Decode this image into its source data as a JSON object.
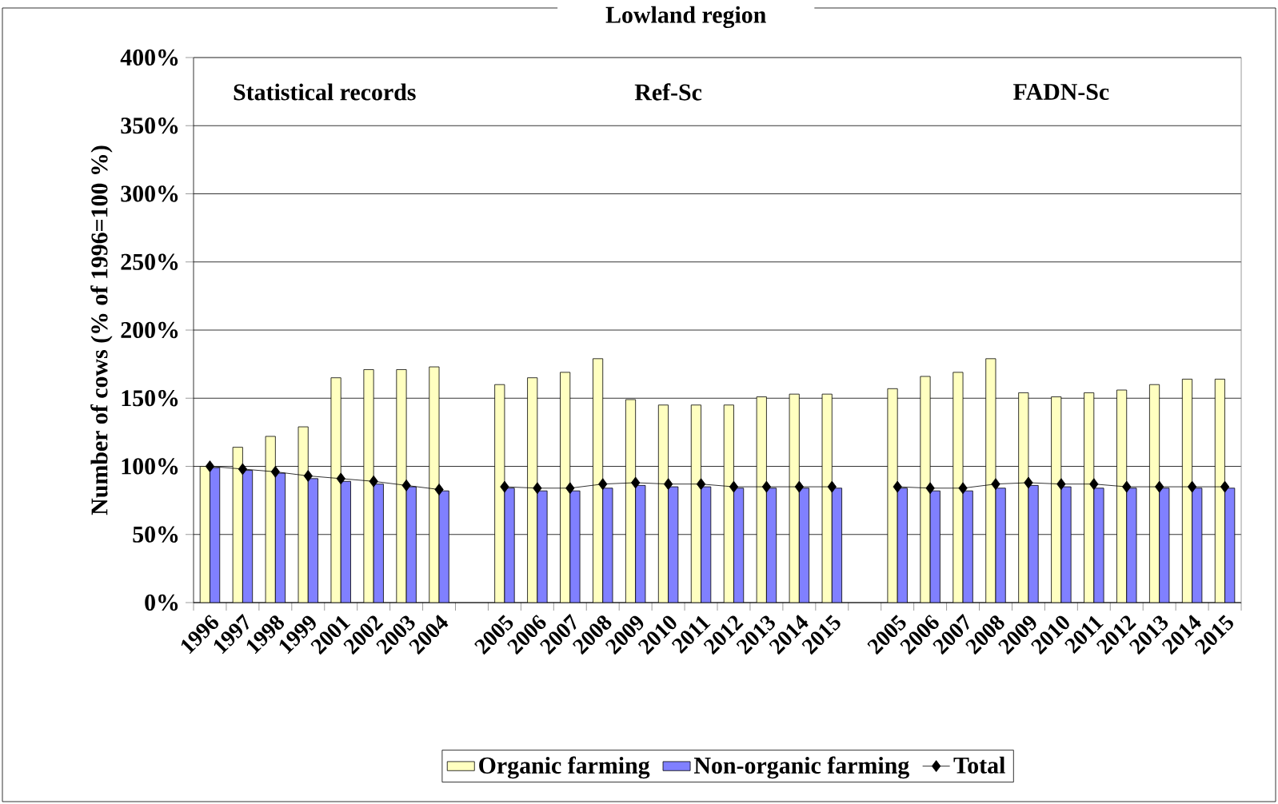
{
  "chart_data": {
    "type": "bar",
    "title": "Lowland region",
    "ylabel": "Number of cows (% of 1996=100 %)",
    "categories": [
      "1996",
      "1997",
      "1998",
      "1999",
      "2001",
      "2002",
      "2003",
      "2004",
      null,
      "2005",
      "2006",
      "2007",
      "2008",
      "2009",
      "2010",
      "2011",
      "2012",
      "2013",
      "2014",
      "2015",
      null,
      "2005",
      "2006",
      "2007",
      "2008",
      "2009",
      "2010",
      "2011",
      "2012",
      "2013",
      "2014",
      "2015"
    ],
    "series": [
      {
        "name": "Organic farming",
        "color": "#ffffc0",
        "values": [
          100,
          114,
          122,
          129,
          165,
          171,
          171,
          173,
          null,
          160,
          165,
          169,
          179,
          149,
          145,
          145,
          145,
          151,
          153,
          153,
          null,
          157,
          166,
          169,
          179,
          154,
          151,
          154,
          156,
          160,
          164,
          164
        ]
      },
      {
        "name": "Non-organic farming",
        "color": "#8080ff",
        "values": [
          99,
          97,
          95,
          91,
          89,
          87,
          85,
          82,
          null,
          84,
          82,
          82,
          84,
          86,
          85,
          85,
          84,
          84,
          84,
          84,
          null,
          84,
          82,
          82,
          84,
          86,
          85,
          84,
          84,
          84,
          84,
          84
        ]
      },
      {
        "name": "Total",
        "type": "line",
        "color": "#000000",
        "marker": "diamond",
        "values": [
          100,
          98,
          96,
          93,
          91,
          89,
          86,
          83,
          null,
          85,
          84,
          84,
          87,
          88,
          87,
          87,
          85,
          85,
          85,
          85,
          null,
          85,
          84,
          84,
          87,
          88,
          87,
          87,
          85,
          85,
          85,
          85
        ]
      }
    ],
    "ylim": [
      0,
      400
    ],
    "yticks": [
      {
        "value": 0,
        "label": "0%"
      },
      {
        "value": 50,
        "label": "50%"
      },
      {
        "value": 100,
        "label": "100%"
      },
      {
        "value": 150,
        "label": "150%"
      },
      {
        "value": 200,
        "label": "200%"
      },
      {
        "value": 250,
        "label": "250%"
      },
      {
        "value": 300,
        "label": "300%"
      },
      {
        "value": 350,
        "label": "350%"
      },
      {
        "value": 400,
        "label": "400%"
      }
    ],
    "grid": "y",
    "legend": "bottom",
    "annotations": [
      "Statistical records",
      "Ref-Sc",
      "FADN-Sc"
    ]
  }
}
